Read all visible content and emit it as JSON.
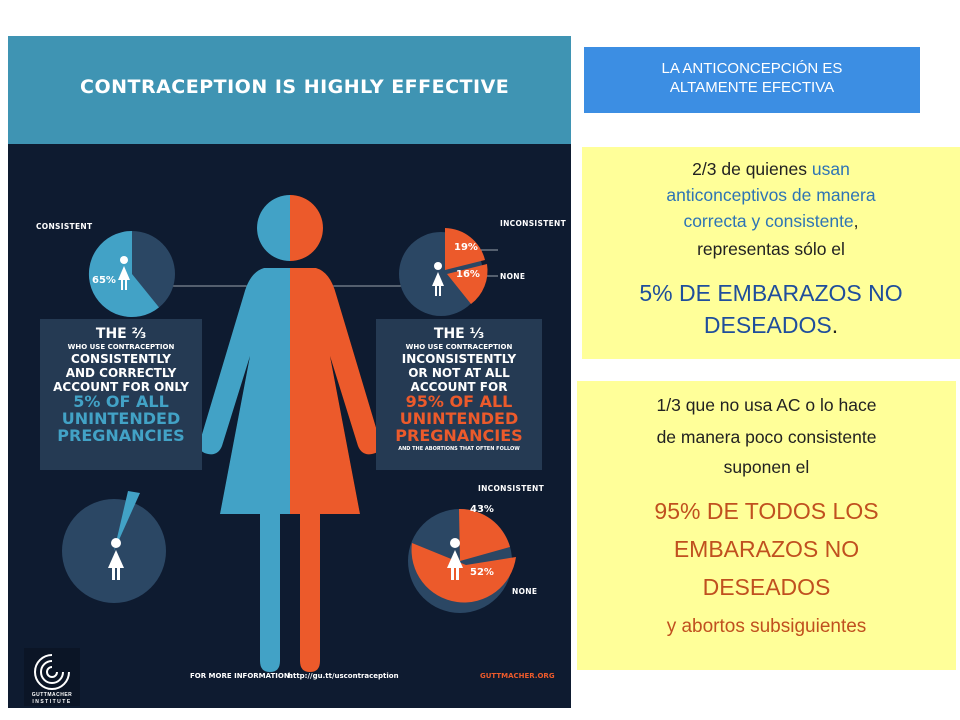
{
  "infographic": {
    "title": "CONTRACEPTION IS HIGHLY EFFECTIVE",
    "top_left_pie": {
      "label": "CONSISTENT",
      "percent": "65%"
    },
    "top_right_pie": {
      "label_inconsistent": "INCONSISTENT",
      "label_none": "NONE",
      "percent_inconsistent": "19%",
      "percent_none": "16%"
    },
    "bottom_right_pie": {
      "label_inconsistent": "INCONSISTENT",
      "label_none": "NONE",
      "percent_inconsistent": "43%",
      "percent_none": "52%"
    },
    "left_box": {
      "fraction": "THE ⅔",
      "line1": "WHO USE CONTRACEPTION",
      "line2": "CONSISTENTLY",
      "line3": "AND CORRECTLY",
      "line4": "ACCOUNT FOR ONLY",
      "line5": "5% OF ALL",
      "line6": "UNINTENDED",
      "line7": "PREGNANCIES"
    },
    "right_box": {
      "fraction": "THE ⅓",
      "line1": "WHO USE CONTRACEPTION",
      "line2": "INCONSISTENTLY",
      "line3": "OR NOT AT ALL",
      "line4": "ACCOUNT FOR",
      "line5": "95% OF ALL",
      "line6": "UNINTENDED",
      "line7": "PREGNANCIES",
      "line8": "AND THE ABORTIONS THAT OFTEN FOLLOW"
    },
    "footer_info": "FOR MORE INFORMATION:",
    "footer_url": "http://gu.tt/uscontraception",
    "footer_site": "GUTTMACHER.ORG",
    "logo_line1": "GUTTMACHER",
    "logo_line2": "INSTITUTE",
    "colors": {
      "blue": "#42a2c6",
      "orange": "#ec5a2b",
      "navy": "#0e1b30",
      "header": "#3f94b3"
    }
  },
  "heading": {
    "line1": "LA ANTICONCEPCIÓN ES",
    "line2": "ALTAMENTE EFECTIVA"
  },
  "box1": {
    "line1": "2/3 de quienes",
    "line1_hl": "usan",
    "line2": "anticonceptivos de manera",
    "line3a": "correcta y consistente",
    "line3b": ",",
    "line4": "representas sólo el",
    "big1": "5% DE EMBARAZOS NO",
    "big2": "DESEADOS",
    "big2_end": "."
  },
  "box2": {
    "line1": "1/3 que no usa AC o lo hace",
    "line2": "de manera poco consistente",
    "line3": "suponen el",
    "big1": "95% DE TODOS LOS",
    "big2": "EMBARAZOS NO",
    "big3": "DESEADOS",
    "tail": "y abortos subsiguientes"
  },
  "text_colors": {
    "blue_text": "#2e74b5",
    "big_blue": "#1f4e9c",
    "big_red": "#c0501f"
  }
}
